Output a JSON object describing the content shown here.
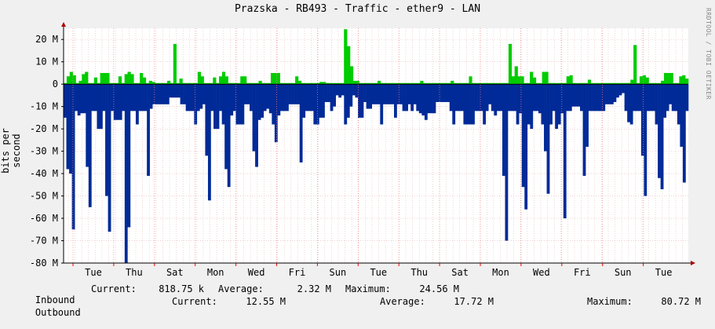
{
  "chart_data": {
    "type": "area",
    "title": "Prazska - RB493 - Traffic - ether9 - LAN",
    "ylabel": "bits per second",
    "ylim": [
      -80000000,
      25000000
    ],
    "y_ticks": [
      {
        "value": 20000000,
        "label": "20 M"
      },
      {
        "value": 10000000,
        "label": "10 M"
      },
      {
        "value": 0,
        "label": "0"
      },
      {
        "value": -10000000,
        "label": "-10 M"
      },
      {
        "value": -20000000,
        "label": "-20 M"
      },
      {
        "value": -30000000,
        "label": "-30 M"
      },
      {
        "value": -40000000,
        "label": "-40 M"
      },
      {
        "value": -50000000,
        "label": "-50 M"
      },
      {
        "value": -60000000,
        "label": "-60 M"
      },
      {
        "value": -70000000,
        "label": "-70 M"
      },
      {
        "value": -80000000,
        "label": "-80 M"
      }
    ],
    "x_ticks": [
      "Tue",
      "Thu",
      "Sat",
      "Mon",
      "Wed",
      "Fri",
      "Sun",
      "Tue",
      "Thu",
      "Sat",
      "Mon",
      "Wed",
      "Fri",
      "Sun",
      "Tue"
    ],
    "series": [
      {
        "name": "Inbound",
        "color": "#00cc00",
        "values": [
          0.5,
          3.5,
          5.5,
          4,
          0.5,
          1.5,
          4.5,
          5.5,
          0.5,
          0.5,
          3,
          0.5,
          5,
          5,
          5,
          0.5,
          0.5,
          0.5,
          3.5,
          0.5,
          4.5,
          5.5,
          4.5,
          0.5,
          0.5,
          5,
          3,
          0.5,
          1.5,
          1,
          0.5,
          0.5,
          0.5,
          0.5,
          1.5,
          0.5,
          18,
          0.5,
          2.5,
          0.5,
          0.5,
          0.5,
          0.5,
          0.5,
          5.5,
          3.5,
          0.5,
          0.5,
          0.5,
          3,
          0.5,
          3.5,
          5.5,
          3.5,
          0.5,
          0.5,
          0.5,
          0.5,
          3.5,
          3.5,
          0.5,
          0.5,
          0.5,
          0.5,
          1.5,
          0.5,
          0.5,
          0.5,
          5,
          5,
          5,
          0.5,
          0.5,
          0.5,
          0.5,
          0.5,
          3.5,
          1.5,
          0.5,
          0.5,
          0.5,
          0.5,
          0.5,
          0.5,
          1,
          1,
          0.5,
          0.5,
          0.5,
          0.5,
          0.5,
          0.5,
          24.56,
          17,
          8,
          1.5,
          1.5,
          0.5,
          0.5,
          0.5,
          0.5,
          0.5,
          0.5,
          1.5,
          0.5,
          0.5,
          0.5,
          0.5,
          0.5,
          0.5,
          0.5,
          0.5,
          0.5,
          0.5,
          0.5,
          0.5,
          0.5,
          1.5,
          0.5,
          0.5,
          0.5,
          0.5,
          0.5,
          0.5,
          0.5,
          0.5,
          0.5,
          1.5,
          0.5,
          0.5,
          0.5,
          0.5,
          0.5,
          3.5,
          0.5,
          0.5,
          0.5,
          0.5,
          0.5,
          0.5,
          0.5,
          0.5,
          0.5,
          0.5,
          0.5,
          0.5,
          18,
          3.5,
          8,
          3.5,
          3.5,
          0.5,
          0.5,
          5.5,
          3,
          0.5,
          0.5,
          5.5,
          5.5,
          0.5,
          0.5,
          0.5,
          0.5,
          0.5,
          0.5,
          3.5,
          4,
          0.5,
          0.5,
          0.5,
          0.5,
          0.5,
          2,
          0.5,
          0.5,
          0.5,
          0.5,
          0.5,
          0.5,
          0.5,
          0.5,
          0.5,
          0.5,
          0.5,
          0.5,
          0.5,
          2,
          17.5,
          0.5,
          3.5,
          4,
          3,
          0.5,
          0.5,
          0.5,
          0.5,
          1.5,
          5,
          5,
          5,
          0.5,
          0.5,
          3.5,
          4,
          2.5
        ]
      },
      {
        "name": "Outbound",
        "color": "#002a97",
        "values": [
          15,
          38,
          40,
          65,
          12,
          14,
          13,
          13,
          37,
          55,
          12,
          12,
          20,
          20,
          12,
          50,
          66,
          12,
          16,
          16,
          16,
          12,
          80,
          64,
          12,
          12,
          18,
          12,
          12,
          12,
          41,
          11,
          9,
          9,
          9,
          9,
          9,
          9,
          6,
          6,
          6,
          6,
          9,
          9,
          12,
          12,
          12,
          18,
          12,
          11,
          9,
          32,
          52,
          12,
          20,
          20,
          12,
          18,
          38,
          46,
          14,
          12,
          18,
          18,
          18,
          9,
          9,
          12,
          30,
          37,
          16,
          15,
          12,
          11,
          13,
          18,
          26,
          14,
          12,
          12,
          12,
          9,
          9,
          9,
          9,
          35,
          15,
          12,
          12,
          12,
          18,
          18,
          15,
          15,
          8,
          8,
          12,
          10,
          5,
          6,
          5,
          18,
          15,
          10,
          5,
          6,
          15,
          15,
          8,
          11,
          11,
          9,
          9,
          9,
          18,
          9,
          9,
          9,
          9,
          15,
          9,
          9,
          12,
          12,
          9,
          12,
          9,
          12,
          13,
          14,
          16,
          13,
          13,
          13,
          8,
          8,
          8,
          8,
          8,
          12,
          18,
          12,
          12,
          12,
          18,
          18,
          18,
          18,
          12,
          12,
          12,
          18,
          12,
          9,
          12,
          14,
          12,
          12,
          41,
          70,
          12,
          12,
          12,
          18,
          13,
          46,
          56,
          18,
          20,
          12,
          12,
          13,
          18,
          30,
          49,
          18,
          12,
          20,
          18,
          13,
          60,
          12,
          12,
          10,
          10,
          10,
          12,
          41,
          28,
          12,
          12,
          12,
          12,
          12,
          12,
          9,
          9,
          9,
          8,
          6,
          5,
          4,
          12,
          17,
          18,
          12,
          12,
          12,
          32,
          50,
          12,
          12,
          12,
          18,
          42,
          47,
          15,
          12,
          9,
          12,
          12,
          18,
          28,
          44,
          12
        ]
      }
    ]
  },
  "legend": {
    "inbound": {
      "label": "Inbound",
      "color": "#00cc00",
      "current_label": "Current:",
      "current": "818.75 k",
      "average_label": "Average:",
      "average": "2.32 M",
      "maximum_label": "Maximum:",
      "maximum": "24.56 M"
    },
    "outbound": {
      "label": "Outbound",
      "color": "#002a97",
      "current_label": "Current:",
      "current": "12.55 M",
      "average_label": "Average:",
      "average": "17.72 M",
      "maximum_label": "Maximum:",
      "maximum": "80.72 M"
    }
  },
  "watermark": "RRDTOOL / TOBI OETIKER"
}
